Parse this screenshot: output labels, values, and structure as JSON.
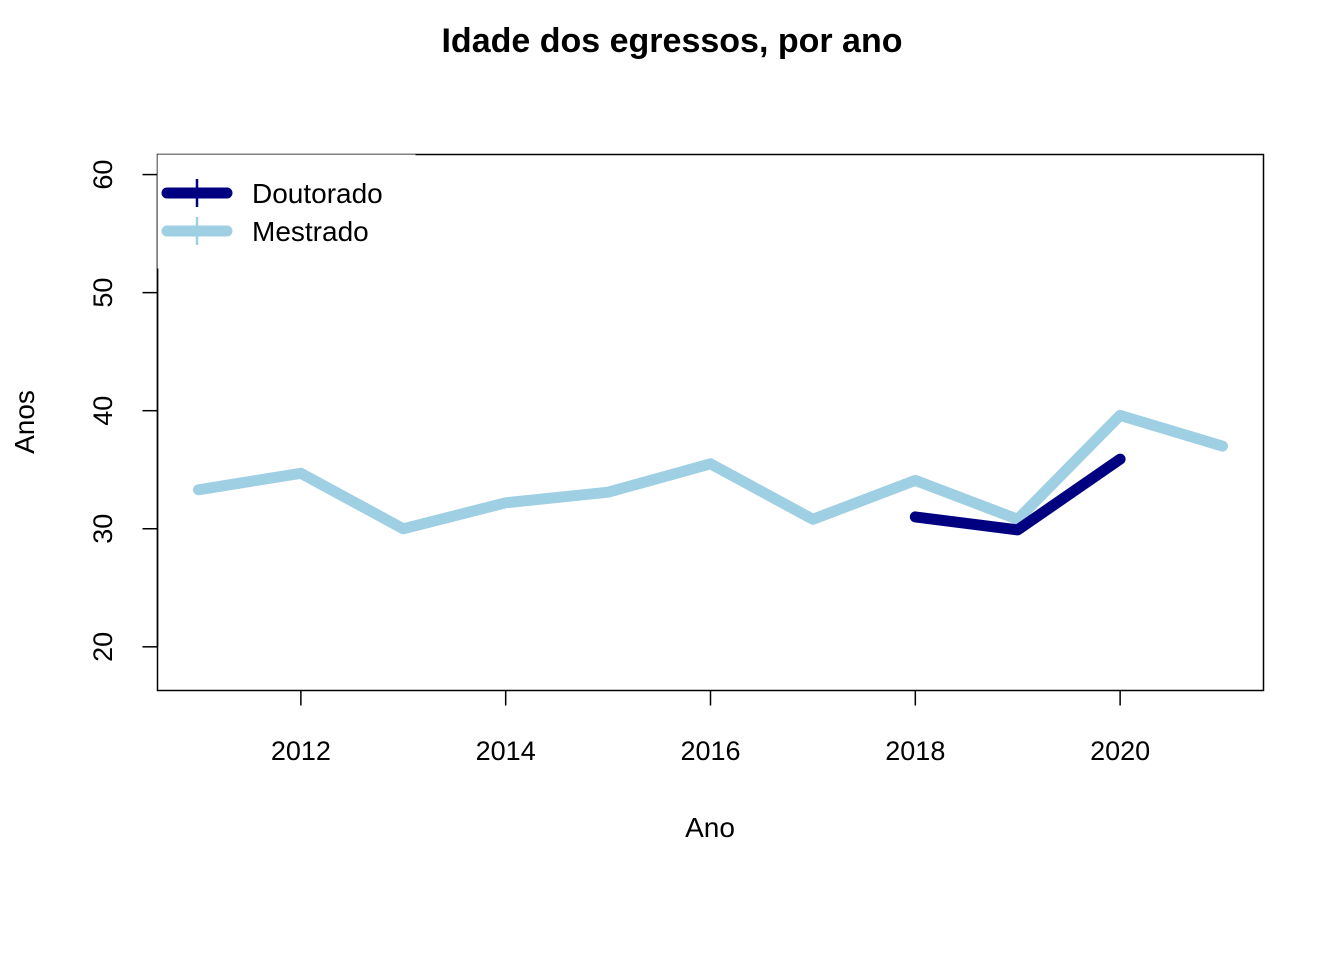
{
  "chart_data": {
    "type": "line",
    "title": "Idade dos egressos, por ano",
    "xlabel": "Ano",
    "ylabel": "Anos",
    "xlim": [
      2010.6,
      2021.4
    ],
    "ylim": [
      16.3,
      61.7
    ],
    "x_ticks": [
      2012,
      2014,
      2016,
      2018,
      2020
    ],
    "y_ticks": [
      20,
      30,
      40,
      50,
      60
    ],
    "grid": false,
    "legend_position": "top-left",
    "series": [
      {
        "name": "Doutorado",
        "color": "#000080",
        "x": [
          2018,
          2019,
          2020
        ],
        "y": [
          31.0,
          29.9,
          35.9
        ]
      },
      {
        "name": "Mestrado",
        "color": "#9FCFE2",
        "x": [
          2011,
          2012,
          2013,
          2014,
          2015,
          2016,
          2017,
          2018,
          2019,
          2020,
          2021
        ],
        "y": [
          33.3,
          34.7,
          30.0,
          32.2,
          33.1,
          35.5,
          30.8,
          34.1,
          30.8,
          39.6,
          37.0
        ]
      }
    ]
  }
}
